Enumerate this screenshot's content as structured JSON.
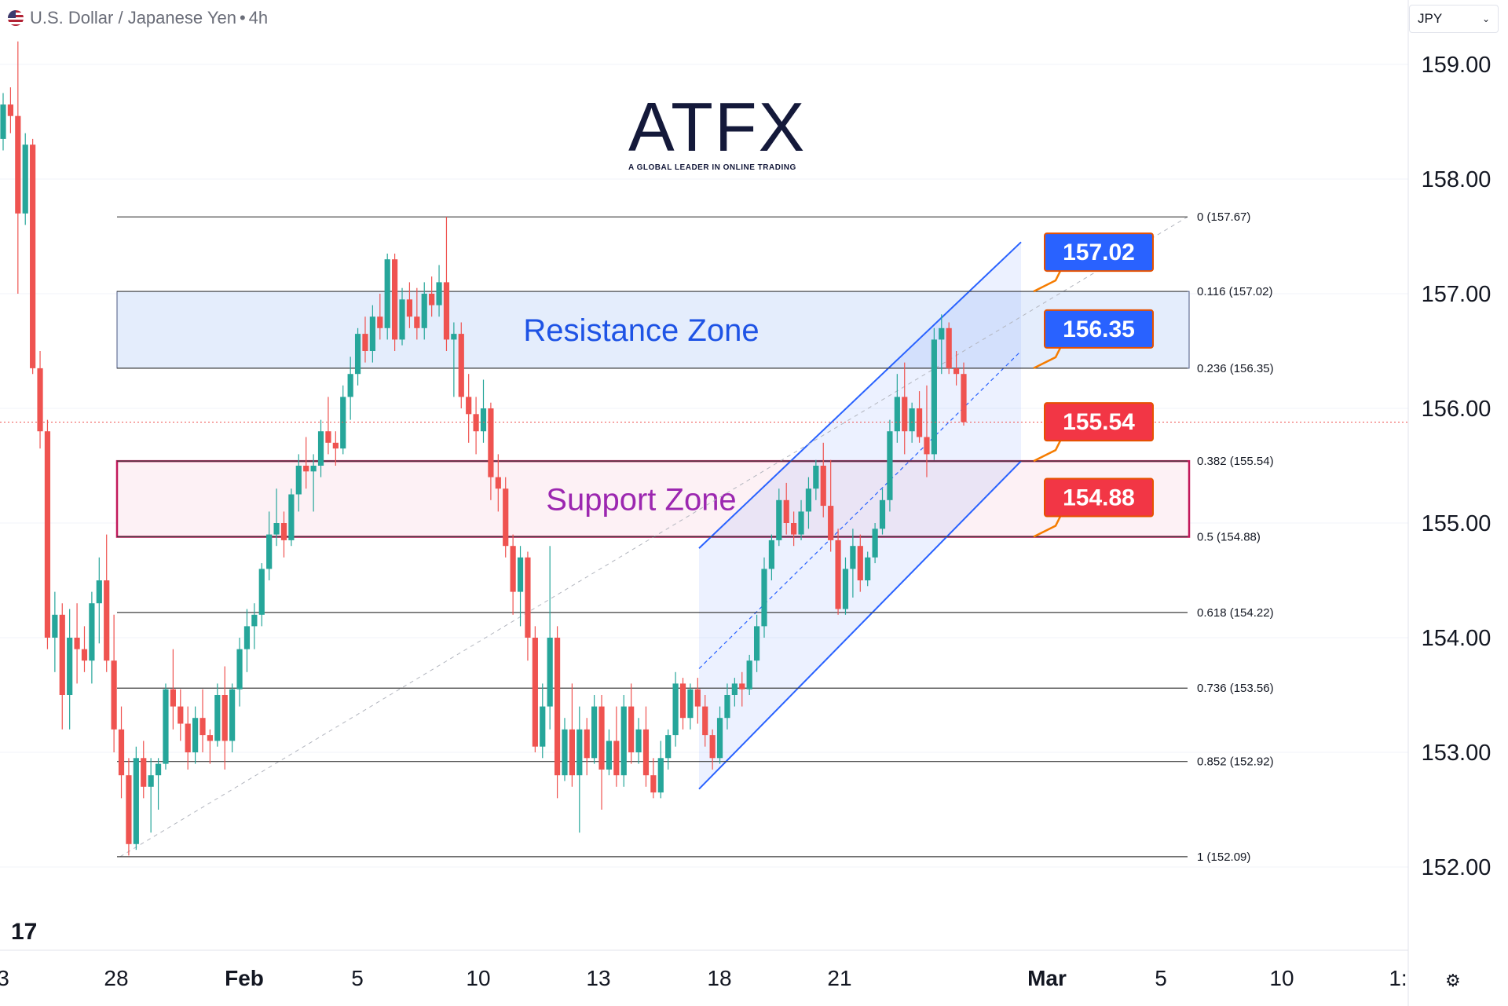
{
  "header": {
    "title": "U.S. Dollar / Japanese Yen",
    "separator": "•",
    "interval": "4h"
  },
  "currency_select": {
    "value": "JPY",
    "icon": "chevron-down-icon"
  },
  "logo": {
    "name": "ATFX",
    "tagline": "A GLOBAL LEADER IN ONLINE TRADING"
  },
  "tv_logo_text": "17",
  "colors": {
    "up": "#26a69a",
    "down": "#ef5350",
    "resistance_fill": "#dbe7fb",
    "support_border": "#c2185b",
    "support_fill": "#fdf1f5",
    "channel": "#2962ff",
    "label_blue": "#2962ff",
    "label_red": "#f23645",
    "text_resistance": "#1e53e5",
    "text_support": "#9c27b0"
  },
  "chart_data": {
    "type": "candlestick",
    "symbol": "U.S. Dollar / Japanese Yen",
    "interval": "4h",
    "price_axis": {
      "ticks": [
        "159.00",
        "158.00",
        "157.00",
        "156.00",
        "155.00",
        "154.00",
        "153.00",
        "152.00"
      ],
      "ylim": [
        151.75,
        159.45
      ]
    },
    "time_axis": {
      "ticks": [
        "3",
        "28",
        "Feb",
        "5",
        "10",
        "13",
        "18",
        "21",
        "Mar",
        "5",
        "10",
        "1:"
      ],
      "bold": [
        "Feb",
        "Mar"
      ]
    },
    "fibonacci": [
      {
        "ratio": "0",
        "price": "157.67",
        "label": "0 (157.67)"
      },
      {
        "ratio": "0.116",
        "price": "157.02",
        "label": "0.116 (157.02)"
      },
      {
        "ratio": "0.236",
        "price": "156.35",
        "label": "0.236 (156.35)"
      },
      {
        "ratio": "0.382",
        "price": "155.54",
        "label": "0.382 (155.54)"
      },
      {
        "ratio": "0.5",
        "price": "154.88",
        "label": "0.5 (154.88)"
      },
      {
        "ratio": "0.618",
        "price": "154.22",
        "label": "0.618 (154.22)"
      },
      {
        "ratio": "0.736",
        "price": "153.56",
        "label": "0.736 (153.56)"
      },
      {
        "ratio": "0.852",
        "price": "152.92",
        "label": "0.852 (152.92)"
      },
      {
        "ratio": "1",
        "price": "152.09",
        "label": "1 (152.09)"
      }
    ],
    "zones": [
      {
        "name": "Resistance Zone",
        "top": 157.02,
        "bottom": 156.35
      },
      {
        "name": "Support Zone",
        "top": 155.54,
        "bottom": 154.88
      }
    ],
    "callouts": [
      {
        "text": "157.02",
        "price": 157.02,
        "color": "blue"
      },
      {
        "text": "156.35",
        "price": 156.35,
        "color": "blue"
      },
      {
        "text": "155.54",
        "price": 155.54,
        "color": "red"
      },
      {
        "text": "154.88",
        "price": 154.88,
        "color": "red"
      }
    ],
    "current_price": 155.88,
    "candles": [
      [
        158.35,
        158.75,
        158.25,
        158.65
      ],
      [
        158.65,
        158.8,
        158.4,
        158.55
      ],
      [
        158.55,
        159.2,
        157.0,
        157.7
      ],
      [
        157.7,
        158.4,
        157.6,
        158.3
      ],
      [
        158.3,
        158.35,
        156.3,
        156.35
      ],
      [
        156.35,
        156.5,
        155.65,
        155.8
      ],
      [
        155.8,
        155.9,
        153.9,
        154.0
      ],
      [
        154.0,
        154.4,
        153.7,
        154.2
      ],
      [
        154.2,
        154.3,
        153.2,
        153.5
      ],
      [
        153.5,
        154.25,
        153.2,
        154.0
      ],
      [
        154.0,
        154.3,
        153.6,
        153.9
      ],
      [
        153.9,
        154.1,
        153.7,
        153.8
      ],
      [
        153.8,
        154.4,
        153.6,
        154.3
      ],
      [
        154.3,
        154.7,
        153.95,
        154.5
      ],
      [
        154.5,
        154.9,
        153.7,
        153.8
      ],
      [
        153.8,
        154.2,
        153.0,
        153.2
      ],
      [
        153.2,
        153.4,
        152.6,
        152.8
      ],
      [
        152.8,
        152.95,
        152.1,
        152.2
      ],
      [
        152.2,
        153.05,
        152.15,
        152.95
      ],
      [
        152.95,
        153.1,
        152.6,
        152.7
      ],
      [
        152.7,
        152.95,
        152.3,
        152.8
      ],
      [
        152.8,
        152.95,
        152.5,
        152.9
      ],
      [
        152.9,
        153.6,
        152.85,
        153.55
      ],
      [
        153.55,
        153.9,
        153.2,
        153.4
      ],
      [
        153.4,
        153.55,
        153.1,
        153.25
      ],
      [
        153.25,
        153.4,
        152.85,
        153.0
      ],
      [
        153.0,
        153.4,
        152.9,
        153.3
      ],
      [
        153.3,
        153.55,
        153.0,
        153.15
      ],
      [
        153.15,
        153.2,
        152.9,
        153.1
      ],
      [
        153.1,
        153.6,
        153.05,
        153.5
      ],
      [
        153.5,
        153.75,
        152.85,
        153.1
      ],
      [
        153.1,
        153.6,
        153.0,
        153.55
      ],
      [
        153.55,
        154.0,
        153.4,
        153.9
      ],
      [
        153.9,
        154.25,
        153.7,
        154.1
      ],
      [
        154.1,
        154.3,
        153.9,
        154.2
      ],
      [
        154.2,
        154.65,
        154.1,
        154.6
      ],
      [
        154.6,
        155.1,
        154.5,
        154.9
      ],
      [
        154.9,
        155.3,
        154.8,
        155.0
      ],
      [
        155.0,
        155.1,
        154.7,
        154.85
      ],
      [
        154.85,
        155.3,
        154.8,
        155.25
      ],
      [
        155.25,
        155.6,
        155.1,
        155.5
      ],
      [
        155.5,
        155.75,
        155.3,
        155.45
      ],
      [
        155.45,
        155.6,
        155.1,
        155.5
      ],
      [
        155.5,
        155.9,
        155.4,
        155.8
      ],
      [
        155.8,
        156.1,
        155.6,
        155.7
      ],
      [
        155.7,
        155.8,
        155.5,
        155.65
      ],
      [
        155.65,
        156.2,
        155.6,
        156.1
      ],
      [
        156.1,
        156.45,
        155.9,
        156.3
      ],
      [
        156.3,
        156.7,
        156.2,
        156.65
      ],
      [
        156.65,
        156.8,
        156.4,
        156.5
      ],
      [
        156.5,
        156.9,
        156.4,
        156.8
      ],
      [
        156.8,
        157.0,
        156.6,
        156.7
      ],
      [
        156.7,
        157.35,
        156.6,
        157.3
      ],
      [
        157.3,
        157.35,
        156.5,
        156.6
      ],
      [
        156.6,
        157.05,
        156.55,
        156.95
      ],
      [
        156.95,
        157.1,
        156.7,
        156.8
      ],
      [
        156.8,
        157.05,
        156.6,
        156.7
      ],
      [
        156.7,
        157.1,
        156.6,
        157.0
      ],
      [
        157.0,
        157.15,
        156.8,
        156.9
      ],
      [
        156.9,
        157.25,
        156.8,
        157.1
      ],
      [
        157.1,
        157.67,
        156.5,
        156.6
      ],
      [
        156.6,
        156.75,
        156.1,
        156.65
      ],
      [
        156.65,
        156.75,
        156.0,
        156.1
      ],
      [
        156.1,
        156.3,
        155.7,
        155.95
      ],
      [
        155.95,
        156.1,
        155.6,
        155.8
      ],
      [
        155.8,
        156.25,
        155.7,
        156.0
      ],
      [
        156.0,
        156.05,
        155.2,
        155.4
      ],
      [
        155.4,
        155.6,
        155.1,
        155.3
      ],
      [
        155.3,
        155.4,
        154.7,
        154.8
      ],
      [
        154.8,
        154.9,
        154.2,
        154.4
      ],
      [
        154.4,
        154.8,
        154.1,
        154.7
      ],
      [
        154.7,
        154.75,
        153.8,
        154.0
      ],
      [
        154.0,
        154.1,
        153.0,
        153.05
      ],
      [
        153.05,
        153.6,
        152.95,
        153.4
      ],
      [
        153.4,
        154.8,
        153.2,
        154.0
      ],
      [
        154.0,
        154.1,
        152.6,
        152.8
      ],
      [
        152.8,
        153.3,
        152.75,
        153.2
      ],
      [
        153.2,
        153.6,
        152.7,
        152.8
      ],
      [
        152.8,
        153.4,
        152.3,
        153.2
      ],
      [
        153.2,
        153.3,
        152.8,
        152.95
      ],
      [
        152.95,
        153.5,
        152.9,
        153.4
      ],
      [
        153.4,
        153.5,
        152.5,
        152.85
      ],
      [
        152.85,
        153.2,
        152.8,
        153.1
      ],
      [
        153.1,
        153.4,
        152.7,
        152.8
      ],
      [
        152.8,
        153.5,
        152.7,
        153.4
      ],
      [
        153.4,
        153.6,
        152.9,
        153.0
      ],
      [
        153.0,
        153.3,
        152.9,
        153.2
      ],
      [
        153.2,
        153.4,
        152.7,
        152.8
      ],
      [
        152.8,
        152.95,
        152.6,
        152.65
      ],
      [
        152.65,
        153.1,
        152.6,
        152.95
      ],
      [
        152.95,
        153.2,
        152.85,
        153.15
      ],
      [
        153.15,
        153.7,
        153.05,
        153.6
      ],
      [
        153.6,
        153.65,
        153.2,
        153.3
      ],
      [
        153.3,
        153.6,
        153.2,
        153.55
      ],
      [
        153.55,
        153.65,
        153.25,
        153.4
      ],
      [
        153.4,
        153.5,
        153.05,
        153.15
      ],
      [
        153.15,
        153.2,
        152.85,
        152.95
      ],
      [
        152.95,
        153.4,
        152.9,
        153.3
      ],
      [
        153.3,
        153.6,
        153.2,
        153.5
      ],
      [
        153.5,
        153.65,
        153.4,
        153.6
      ],
      [
        153.6,
        153.7,
        153.4,
        153.55
      ],
      [
        153.55,
        153.85,
        153.5,
        153.8
      ],
      [
        153.8,
        154.2,
        153.7,
        154.1
      ],
      [
        154.1,
        154.7,
        154.0,
        154.6
      ],
      [
        154.6,
        154.9,
        154.5,
        154.85
      ],
      [
        154.85,
        155.3,
        154.8,
        155.2
      ],
      [
        155.2,
        155.35,
        154.9,
        155.0
      ],
      [
        155.0,
        155.1,
        154.8,
        154.9
      ],
      [
        154.9,
        155.2,
        154.85,
        155.1
      ],
      [
        155.1,
        155.4,
        154.95,
        155.3
      ],
      [
        155.3,
        155.55,
        155.2,
        155.5
      ],
      [
        155.5,
        155.7,
        155.05,
        155.15
      ],
      [
        155.15,
        155.55,
        154.75,
        154.85
      ],
      [
        154.85,
        154.95,
        154.2,
        154.25
      ],
      [
        154.25,
        154.7,
        154.2,
        154.6
      ],
      [
        154.6,
        154.95,
        154.35,
        154.8
      ],
      [
        154.8,
        154.9,
        154.4,
        154.5
      ],
      [
        154.5,
        154.75,
        154.45,
        154.7
      ],
      [
        154.7,
        155.0,
        154.65,
        154.95
      ],
      [
        154.95,
        155.3,
        154.9,
        155.2
      ],
      [
        155.2,
        155.9,
        155.1,
        155.8
      ],
      [
        155.8,
        156.3,
        155.7,
        156.1
      ],
      [
        156.1,
        156.4,
        155.6,
        155.8
      ],
      [
        155.8,
        156.05,
        155.7,
        156.0
      ],
      [
        156.0,
        156.15,
        155.7,
        155.75
      ],
      [
        155.75,
        156.2,
        155.4,
        155.6
      ],
      [
        155.6,
        156.7,
        155.55,
        156.6
      ],
      [
        156.6,
        156.82,
        156.3,
        156.7
      ],
      [
        156.7,
        156.75,
        156.3,
        156.35
      ],
      [
        156.35,
        156.5,
        156.2,
        156.3
      ],
      [
        156.3,
        156.4,
        155.85,
        155.88
      ]
    ]
  }
}
